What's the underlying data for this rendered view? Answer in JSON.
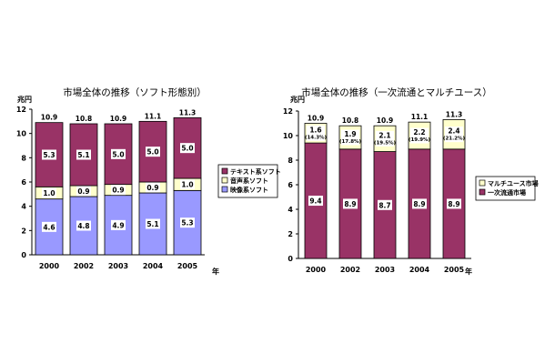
{
  "chart_data": [
    {
      "type": "bar",
      "stacked": true,
      "title": "市場全体の推移（ソフト形態別）",
      "y_unit": "兆円",
      "x_unit": "年",
      "ylim": [
        0,
        12
      ],
      "yticks": [
        "0",
        "2",
        "4",
        "6",
        "8",
        "10",
        "12"
      ],
      "grid": false,
      "legend_position": "right",
      "categories": [
        "2000",
        "2002",
        "2003",
        "2004",
        "2005"
      ],
      "totals": [
        "10.9",
        "10.8",
        "10.9",
        "11.1",
        "11.3"
      ],
      "series": [
        {
          "name": "映像系ソフト",
          "color": "#9999ff",
          "values": [
            4.6,
            4.8,
            4.9,
            5.1,
            5.3
          ],
          "labels": [
            "4.6",
            "4.8",
            "4.9",
            "5.1",
            "5.3"
          ]
        },
        {
          "name": "音声系ソフト",
          "color": "#ffffcc",
          "values": [
            1.0,
            0.9,
            0.9,
            0.9,
            1.0
          ],
          "labels": [
            "1.0",
            "0.9",
            "0.9",
            "0.9",
            "1.0"
          ]
        },
        {
          "name": "テキスト系ソフト",
          "color": "#993366",
          "values": [
            5.3,
            5.1,
            5.0,
            5.0,
            5.0
          ],
          "labels": [
            "5.3",
            "5.1",
            "5.0",
            "5.0",
            "5.0"
          ]
        }
      ]
    },
    {
      "type": "bar",
      "stacked": true,
      "title": "市場全体の推移（一次流通とマルチユース）",
      "y_unit": "兆円",
      "x_unit": "年",
      "ylim": [
        0,
        12
      ],
      "yticks": [
        "0",
        "2",
        "4",
        "6",
        "8",
        "10",
        "12"
      ],
      "grid": false,
      "legend_position": "right",
      "categories": [
        "2000",
        "2002",
        "2003",
        "2004",
        "2005"
      ],
      "totals": [
        "10.9",
        "10.8",
        "10.9",
        "11.1",
        "11.3"
      ],
      "series": [
        {
          "name": "一次流通市場",
          "color": "#993366",
          "values": [
            9.4,
            8.9,
            8.7,
            8.9,
            8.9
          ],
          "labels": [
            "9.4",
            "8.9",
            "8.7",
            "8.9",
            "8.9"
          ]
        },
        {
          "name": "マルチユース市場",
          "color": "#ffffcc",
          "values": [
            1.6,
            1.9,
            2.1,
            2.2,
            2.4
          ],
          "labels": [
            "1.6",
            "1.9",
            "2.1",
            "2.2",
            "2.4"
          ],
          "pct_labels": [
            "(14.3%)",
            "(17.8%)",
            "(19.5%)",
            "(19.9%)",
            "(21.2%)"
          ]
        }
      ]
    }
  ]
}
